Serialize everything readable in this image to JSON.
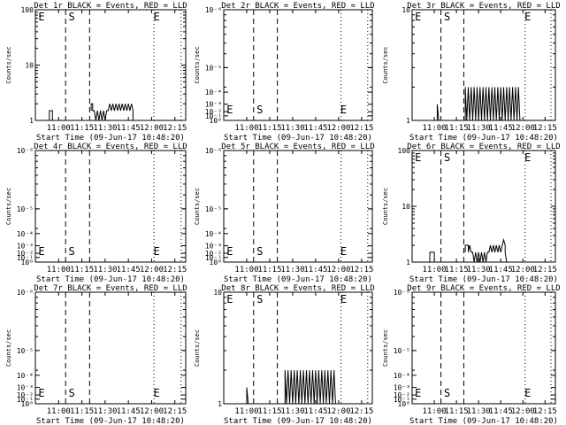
{
  "x_ticks": [
    "11:00",
    "11:15",
    "11:30",
    "11:45",
    "12:00",
    "12:15"
  ],
  "x_tick_minutes": [
    660,
    675,
    690,
    705,
    720,
    735
  ],
  "x_range_minutes": [
    645,
    742
  ],
  "ylabel": "Counts/sec",
  "xlabel": "Start Time (09-Jun-17 10:48:20)",
  "chart_data": [
    {
      "type": "line",
      "title": "Det 1r BLACK = Events, RED = LLD",
      "yscale": "log",
      "ylim": [
        1,
        100
      ],
      "y_ticks": [
        "1",
        "10",
        "100"
      ],
      "y_tick_values": [
        1,
        10,
        100
      ],
      "markers": {
        "E1": "E",
        "S": "S",
        "E2": "E"
      },
      "marker_pos": {
        "E1": 649,
        "S": 664.5,
        "E2": 721.5
      },
      "dash_lines": [
        664.5,
        680
      ],
      "dot_lines": [
        721.5,
        739
      ],
      "series": [
        {
          "segments": [
            [
              [
                654,
                1.0
              ],
              [
                654,
                1.5
              ],
              [
                656,
                1.5
              ],
              [
                656,
                1.0
              ]
            ],
            [
              [
                681,
                1.5
              ],
              [
                681,
                2.0
              ],
              [
                682,
                2.0
              ],
              [
                682,
                1.5
              ],
              [
                683,
                1.5
              ],
              [
                684,
                1.0
              ],
              [
                685,
                1.5
              ],
              [
                686,
                1.0
              ],
              [
                687,
                1.5
              ],
              [
                688,
                1.0
              ],
              [
                689,
                1.5
              ],
              [
                690,
                1.0
              ],
              [
                691,
                1.5
              ],
              [
                692,
                1.5
              ],
              [
                693,
                2.0
              ],
              [
                694,
                1.5
              ],
              [
                695,
                2.0
              ],
              [
                696,
                1.5
              ],
              [
                697,
                2.0
              ],
              [
                698,
                1.5
              ],
              [
                699,
                2.0
              ],
              [
                700,
                1.5
              ],
              [
                701,
                2.0
              ],
              [
                702,
                1.5
              ],
              [
                703,
                2.0
              ],
              [
                704,
                1.5
              ],
              [
                705,
                2.0
              ],
              [
                706,
                1.5
              ],
              [
                707,
                2.0
              ],
              [
                708,
                1.5
              ],
              [
                708,
                1.0
              ]
            ]
          ]
        }
      ]
    },
    {
      "type": "line",
      "title": "Det 2r BLACK = Events, RED = LLD",
      "yscale": "log",
      "ylim": [
        1e-06,
        1e-05
      ],
      "y_ticks": [
        "10⁰",
        "10⁻¹",
        "10⁻²",
        "10⁻³",
        "10⁻⁴",
        "10⁻⁵",
        "10⁻⁶"
      ],
      "y_tick_values": [
        1e-06,
        1.1e-06,
        1.2e-06,
        1.4e-06,
        1.8e-06,
        3e-06,
        1e-05
      ],
      "markers": {
        "E1": "E",
        "S": "S",
        "E2": "E"
      },
      "marker_pos": {
        "E1": 649,
        "S": 664.5,
        "E2": 721.5
      },
      "dash_lines": [
        664.5,
        680
      ],
      "dot_lines": [
        721.5,
        739
      ],
      "series": []
    },
    {
      "type": "line",
      "title": "Det 3r BLACK = Events, RED = LLD",
      "yscale": "log",
      "ylim": [
        1,
        10
      ],
      "y_ticks": [
        "1",
        "10"
      ],
      "y_tick_values": [
        1,
        10
      ],
      "markers": {
        "E1": "E",
        "S": "S",
        "E2": "E"
      },
      "marker_pos": {
        "E1": 649,
        "S": 664.5,
        "E2": 721.5
      },
      "dash_lines": [
        664.5,
        680
      ],
      "dot_lines": [
        721.5,
        739
      ],
      "series": [
        {
          "segments": [
            [
              [
                662,
                1.0
              ],
              [
                662,
                1.4
              ],
              [
                663,
                1.0
              ]
            ],
            [
              [
                681,
                1.0
              ],
              [
                681,
                2.0
              ],
              [
                682,
                1.0
              ],
              [
                683,
                2.0
              ],
              [
                684,
                1.0
              ],
              [
                685,
                2.0
              ],
              [
                686,
                1.0
              ],
              [
                687,
                2.0
              ],
              [
                688,
                1.0
              ],
              [
                689,
                2.0
              ],
              [
                690,
                1.0
              ],
              [
                691,
                2.0
              ],
              [
                692,
                1.0
              ],
              [
                693,
                2.0
              ],
              [
                694,
                1.0
              ],
              [
                695,
                2.0
              ],
              [
                696,
                1.0
              ],
              [
                697,
                2.0
              ],
              [
                698,
                1.0
              ],
              [
                699,
                2.0
              ],
              [
                700,
                1.0
              ],
              [
                701,
                2.0
              ],
              [
                702,
                1.0
              ],
              [
                703,
                2.0
              ],
              [
                704,
                1.0
              ],
              [
                705,
                2.0
              ],
              [
                706,
                1.0
              ],
              [
                707,
                2.0
              ],
              [
                708,
                1.0
              ],
              [
                709,
                2.0
              ],
              [
                710,
                1.0
              ],
              [
                711,
                2.0
              ],
              [
                712,
                1.0
              ],
              [
                713,
                2.0
              ],
              [
                714,
                1.0
              ],
              [
                715,
                2.0
              ],
              [
                716,
                1.0
              ],
              [
                717,
                2.0
              ],
              [
                718,
                1.0
              ]
            ]
          ]
        }
      ]
    },
    {
      "type": "line",
      "title": "Det 4r BLACK = Events, RED = LLD",
      "yscale": "log",
      "ylim": [
        1e-06,
        1e-05
      ],
      "y_ticks": [
        "10⁰",
        "10⁻¹",
        "10⁻²",
        "10⁻³",
        "10⁻⁴",
        "10⁻⁵",
        "10⁻⁶"
      ],
      "y_tick_values": [
        1e-06,
        1.1e-06,
        1.2e-06,
        1.4e-06,
        1.8e-06,
        3e-06,
        1e-05
      ],
      "markers": {
        "E1": "E",
        "S": "S",
        "E2": "E"
      },
      "marker_pos": {
        "E1": 649,
        "S": 664.5,
        "E2": 721.5
      },
      "dash_lines": [
        664.5,
        680
      ],
      "dot_lines": [
        721.5,
        739
      ],
      "series": []
    },
    {
      "type": "line",
      "title": "Det 5r BLACK = Events, RED = LLD",
      "yscale": "log",
      "ylim": [
        1e-06,
        1e-05
      ],
      "y_ticks": [
        "10⁰",
        "10⁻¹",
        "10⁻²",
        "10⁻³",
        "10⁻⁴",
        "10⁻⁵",
        "10⁻⁶"
      ],
      "y_tick_values": [
        1e-06,
        1.1e-06,
        1.2e-06,
        1.4e-06,
        1.8e-06,
        3e-06,
        1e-05
      ],
      "markers": {
        "E1": "E",
        "S": "S",
        "E2": "E"
      },
      "marker_pos": {
        "E1": 649,
        "S": 664.5,
        "E2": 721.5
      },
      "dash_lines": [
        664.5,
        680
      ],
      "dot_lines": [
        721.5,
        739
      ],
      "series": []
    },
    {
      "type": "line",
      "title": "Det 6r BLACK = Events, RED = LLD",
      "yscale": "log",
      "ylim": [
        1,
        100
      ],
      "y_ticks": [
        "1",
        "10",
        "100"
      ],
      "y_tick_values": [
        1,
        10,
        100
      ],
      "markers": {
        "E1": "E",
        "S": "S",
        "E2": "E"
      },
      "marker_pos": {
        "E1": 649,
        "S": 664.5,
        "E2": 721.5
      },
      "dash_lines": [
        664.5,
        680
      ],
      "dot_lines": [
        721.5,
        739
      ],
      "series": [
        {
          "segments": [
            [
              [
                657,
                1.0
              ],
              [
                657,
                1.5
              ],
              [
                660,
                1.5
              ],
              [
                660,
                1.0
              ]
            ],
            [
              [
                681,
                1.5
              ],
              [
                681,
                2.0
              ],
              [
                683,
                2.0
              ],
              [
                683,
                1.5
              ],
              [
                684,
                2.0
              ],
              [
                685,
                1.5
              ],
              [
                686,
                1.5
              ],
              [
                687,
                1.0
              ],
              [
                688,
                1.5
              ],
              [
                689,
                1.0
              ],
              [
                690,
                1.5
              ],
              [
                691,
                1.0
              ],
              [
                692,
                1.5
              ],
              [
                693,
                1.0
              ],
              [
                694,
                1.5
              ],
              [
                695,
                1.0
              ],
              [
                696,
                1.5
              ],
              [
                697,
                1.5
              ],
              [
                698,
                2.0
              ],
              [
                699,
                1.5
              ],
              [
                700,
                2.0
              ],
              [
                701,
                1.5
              ],
              [
                702,
                2.0
              ],
              [
                703,
                1.5
              ],
              [
                704,
                2.0
              ],
              [
                705,
                1.5
              ],
              [
                706,
                2.0
              ],
              [
                707,
                2.5
              ],
              [
                708,
                2.0
              ],
              [
                708,
                1.5
              ],
              [
                709,
                1.0
              ]
            ]
          ]
        }
      ]
    },
    {
      "type": "line",
      "title": "Det 7r BLACK = Events, RED = LLD",
      "yscale": "log",
      "ylim": [
        1e-06,
        1e-05
      ],
      "y_ticks": [
        "10⁰",
        "10⁻¹",
        "10⁻²",
        "10⁻³",
        "10⁻⁴",
        "10⁻⁵",
        "10⁻⁶"
      ],
      "y_tick_values": [
        1e-06,
        1.1e-06,
        1.2e-06,
        1.4e-06,
        1.8e-06,
        3e-06,
        1e-05
      ],
      "markers": {
        "E1": "E",
        "S": "S",
        "E2": "E"
      },
      "marker_pos": {
        "E1": 649,
        "S": 664.5,
        "E2": 721.5
      },
      "dash_lines": [
        664.5,
        680
      ],
      "dot_lines": [
        721.5,
        739
      ],
      "series": []
    },
    {
      "type": "line",
      "title": "Det 8r BLACK = Events, RED = LLD",
      "yscale": "log",
      "ylim": [
        1,
        10
      ],
      "y_ticks": [
        "1",
        "10"
      ],
      "y_tick_values": [
        1,
        10
      ],
      "markers": {
        "E1": "E",
        "S": "S",
        "E2": "E"
      },
      "marker_pos": {
        "E1": 649,
        "S": 664.5,
        "E2": 721.5
      },
      "dash_lines": [
        664.5,
        680
      ],
      "dot_lines": [
        721.5,
        739
      ],
      "series": [
        {
          "segments": [
            [
              [
                660,
                1.0
              ],
              [
                660,
                1.4
              ],
              [
                661,
                1.0
              ]
            ],
            [
              [
                685,
                1.0
              ],
              [
                685,
                2.0
              ],
              [
                686,
                1.0
              ],
              [
                687,
                2.0
              ],
              [
                688,
                1.0
              ],
              [
                689,
                2.0
              ],
              [
                690,
                1.0
              ],
              [
                691,
                2.0
              ],
              [
                692,
                1.0
              ],
              [
                693,
                2.0
              ],
              [
                694,
                1.0
              ],
              [
                695,
                2.0
              ],
              [
                696,
                1.0
              ],
              [
                697,
                2.0
              ],
              [
                698,
                1.0
              ],
              [
                699,
                2.0
              ],
              [
                700,
                1.0
              ],
              [
                701,
                2.0
              ],
              [
                702,
                1.0
              ],
              [
                703,
                2.0
              ],
              [
                704,
                1.0
              ],
              [
                705,
                2.0
              ],
              [
                706,
                1.0
              ],
              [
                707,
                2.0
              ],
              [
                708,
                1.0
              ],
              [
                709,
                2.0
              ],
              [
                710,
                1.0
              ],
              [
                711,
                2.0
              ],
              [
                712,
                1.0
              ],
              [
                713,
                2.0
              ],
              [
                714,
                1.0
              ],
              [
                715,
                2.0
              ],
              [
                716,
                1.0
              ],
              [
                717,
                2.0
              ],
              [
                718,
                1.0
              ]
            ]
          ]
        }
      ]
    },
    {
      "type": "line",
      "title": "Det 9r BLACK = Events, RED = LLD",
      "yscale": "log",
      "ylim": [
        1e-06,
        1e-05
      ],
      "y_ticks": [
        "10⁰",
        "10⁻¹",
        "10⁻²",
        "10⁻³",
        "10⁻⁴",
        "10⁻⁵",
        "10⁻⁶"
      ],
      "y_tick_values": [
        1e-06,
        1.1e-06,
        1.2e-06,
        1.4e-06,
        1.8e-06,
        3e-06,
        1e-05
      ],
      "markers": {
        "E1": "E",
        "S": "S",
        "E2": "E"
      },
      "marker_pos": {
        "E1": 649,
        "S": 664.5,
        "E2": 721.5
      },
      "dash_lines": [
        664.5,
        680
      ],
      "dot_lines": [
        721.5,
        739
      ],
      "series": []
    }
  ]
}
